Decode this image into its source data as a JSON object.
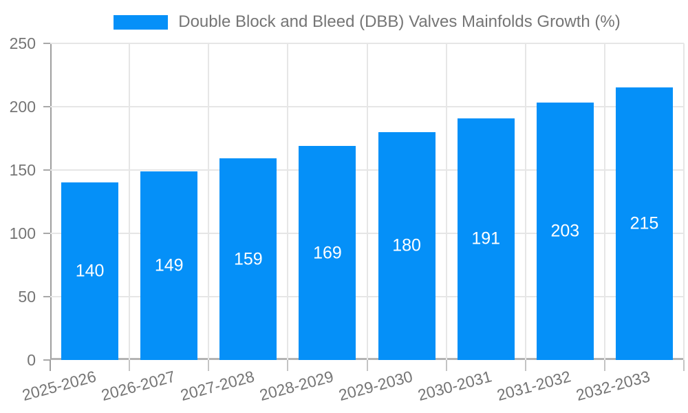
{
  "legend": {
    "label": "Double Block and Bleed (DBB) Valves Mainfolds Growth (%)"
  },
  "chart_data": {
    "type": "bar",
    "title": "Double Block and Bleed (DBB) Valves Mainfolds Growth (%)",
    "categories": [
      "2025-2026",
      "2026-2027",
      "2027-2028",
      "2028-2029",
      "2029-2030",
      "2030-2031",
      "2031-2032",
      "2032-2033"
    ],
    "values": [
      140,
      149,
      159,
      169,
      180,
      191,
      203,
      215
    ],
    "xlabel": "",
    "ylabel": "",
    "ylim": [
      0,
      250
    ],
    "yticks": [
      0,
      50,
      100,
      150,
      200,
      250
    ],
    "grid": true,
    "legend_position": "top",
    "value_labels": "inside-center"
  },
  "colors": {
    "bar": "#0590f8",
    "grid": "#e6e6e6",
    "axis_text": "#757575",
    "value_text": "#ffffff",
    "background": "#ffffff"
  }
}
